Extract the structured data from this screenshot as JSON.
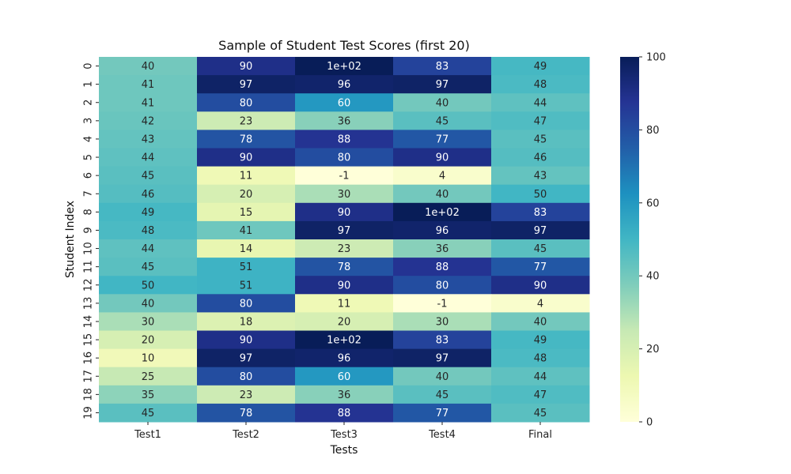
{
  "chart_data": {
    "type": "heatmap",
    "title": "Sample of Student Test Scores (first 20)",
    "xlabel": "Tests",
    "ylabel": "Student Index",
    "columns": [
      "Test1",
      "Test2",
      "Test3",
      "Test4",
      "Final"
    ],
    "rows": [
      "0",
      "1",
      "2",
      "3",
      "4",
      "5",
      "6",
      "7",
      "8",
      "9",
      "10",
      "11",
      "12",
      "13",
      "14",
      "15",
      "16",
      "17",
      "18",
      "19"
    ],
    "values": [
      [
        40,
        90,
        100,
        83,
        49
      ],
      [
        41,
        97,
        96,
        97,
        48
      ],
      [
        41,
        80,
        60,
        40,
        44
      ],
      [
        42,
        23,
        36,
        45,
        47
      ],
      [
        43,
        78,
        88,
        77,
        45
      ],
      [
        44,
        90,
        80,
        90,
        46
      ],
      [
        45,
        11,
        -1,
        4,
        43
      ],
      [
        46,
        20,
        30,
        40,
        50
      ],
      [
        49,
        15,
        90,
        100,
        83
      ],
      [
        48,
        41,
        97,
        96,
        97
      ],
      [
        44,
        14,
        23,
        36,
        45
      ],
      [
        45,
        51,
        78,
        88,
        77
      ],
      [
        50,
        51,
        90,
        80,
        90
      ],
      [
        40,
        80,
        11,
        -1,
        4
      ],
      [
        30,
        18,
        20,
        30,
        40
      ],
      [
        20,
        90,
        100,
        83,
        49
      ],
      [
        10,
        97,
        96,
        97,
        48
      ],
      [
        25,
        80,
        60,
        40,
        44
      ],
      [
        35,
        23,
        36,
        45,
        47
      ],
      [
        45,
        78,
        88,
        77,
        45
      ]
    ],
    "annotations": [
      [
        "40",
        "90",
        "1e+02",
        "83",
        "49"
      ],
      [
        "41",
        "97",
        "96",
        "97",
        "48"
      ],
      [
        "41",
        "80",
        "60",
        "40",
        "44"
      ],
      [
        "42",
        "23",
        "36",
        "45",
        "47"
      ],
      [
        "43",
        "78",
        "88",
        "77",
        "45"
      ],
      [
        "44",
        "90",
        "80",
        "90",
        "46"
      ],
      [
        "45",
        "11",
        "-1",
        "4",
        "43"
      ],
      [
        "46",
        "20",
        "30",
        "40",
        "50"
      ],
      [
        "49",
        "15",
        "90",
        "1e+02",
        "83"
      ],
      [
        "48",
        "41",
        "97",
        "96",
        "97"
      ],
      [
        "44",
        "14",
        "23",
        "36",
        "45"
      ],
      [
        "45",
        "51",
        "78",
        "88",
        "77"
      ],
      [
        "50",
        "51",
        "90",
        "80",
        "90"
      ],
      [
        "40",
        "80",
        "11",
        "-1",
        "4"
      ],
      [
        "30",
        "18",
        "20",
        "30",
        "40"
      ],
      [
        "20",
        "90",
        "1e+02",
        "83",
        "49"
      ],
      [
        "10",
        "97",
        "96",
        "97",
        "48"
      ],
      [
        "25",
        "80",
        "60",
        "40",
        "44"
      ],
      [
        "35",
        "23",
        "36",
        "45",
        "47"
      ],
      [
        "45",
        "78",
        "88",
        "77",
        "45"
      ]
    ],
    "colormap": "YlGnBu",
    "vmin": 0,
    "vmax": 100,
    "colorbar_ticks": [
      0,
      20,
      40,
      60,
      80,
      100
    ],
    "colorbar_labels": [
      "0",
      "20",
      "40",
      "60",
      "80",
      "100"
    ],
    "grid": false,
    "legend": "colorbar-right"
  }
}
